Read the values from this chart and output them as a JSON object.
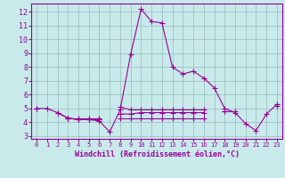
{
  "xlabel": "Windchill (Refroidissement éolien,°C)",
  "x_values": [
    0,
    1,
    2,
    3,
    4,
    5,
    6,
    7,
    8,
    9,
    10,
    11,
    12,
    13,
    14,
    15,
    16,
    17,
    18,
    19,
    20,
    21,
    22,
    23
  ],
  "line1": [
    5.0,
    5.0,
    4.7,
    4.3,
    4.2,
    4.2,
    4.1,
    3.3,
    4.9,
    8.9,
    12.2,
    11.3,
    11.2,
    8.0,
    7.5,
    7.7,
    7.2,
    6.5,
    5.0,
    4.7,
    3.9,
    3.4,
    4.6,
    5.3
  ],
  "line2": [
    5.0,
    null,
    4.7,
    4.3,
    4.2,
    4.2,
    4.2,
    null,
    4.6,
    4.6,
    4.7,
    4.7,
    4.7,
    4.7,
    4.7,
    4.7,
    4.7,
    null,
    4.8,
    4.8,
    null,
    null,
    null,
    5.2
  ],
  "line3": [
    null,
    null,
    null,
    4.3,
    4.2,
    4.2,
    4.2,
    null,
    4.3,
    4.3,
    4.3,
    4.3,
    4.3,
    4.3,
    4.3,
    4.3,
    4.3,
    null,
    null,
    null,
    null,
    null,
    null,
    null
  ],
  "line4": [
    null,
    null,
    null,
    null,
    4.3,
    4.3,
    4.3,
    null,
    5.1,
    4.9,
    4.9,
    4.9,
    4.9,
    4.9,
    4.9,
    4.9,
    4.9,
    null,
    4.8,
    null,
    null,
    null,
    null,
    null
  ],
  "xlim": [
    -0.5,
    23.5
  ],
  "ylim": [
    2.8,
    12.6
  ],
  "yticks": [
    3,
    4,
    5,
    6,
    7,
    8,
    9,
    10,
    11,
    12
  ],
  "xticks": [
    0,
    1,
    2,
    3,
    4,
    5,
    6,
    7,
    8,
    9,
    10,
    11,
    12,
    13,
    14,
    15,
    16,
    17,
    18,
    19,
    20,
    21,
    22,
    23
  ],
  "line_color": "#990099",
  "bg_color": "#c8eaea",
  "grid_color": "#9bbaba",
  "marker": "+",
  "markersize": 4.0,
  "linewidth": 0.8
}
